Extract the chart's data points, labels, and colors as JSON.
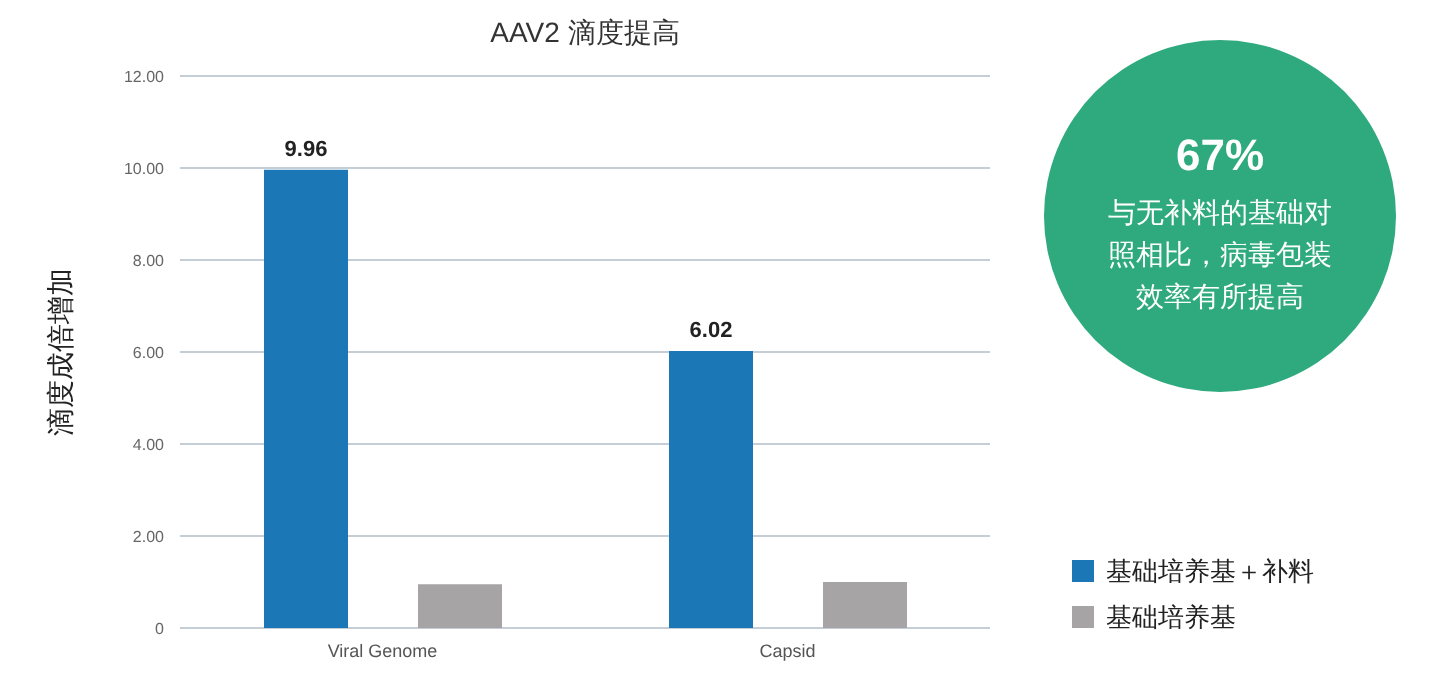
{
  "chart_data": {
    "type": "bar",
    "title": "AAV2 滴度提高",
    "ylabel": "滴度成倍增加",
    "categories": [
      "Viral Genome",
      "Capsid"
    ],
    "series": [
      {
        "name": "基础培养基＋补料",
        "color": "#1c77b6",
        "values": [
          9.96,
          6.02
        ],
        "value_labels": [
          "9.96",
          "6.02"
        ]
      },
      {
        "name": "基础培养基",
        "color": "#a6a4a5",
        "values": [
          0.95,
          1.0
        ],
        "value_labels": [
          null,
          null
        ]
      }
    ],
    "ylim": [
      0,
      12
    ],
    "yticks": [
      {
        "value": 0,
        "label": "0"
      },
      {
        "value": 2,
        "label": "2.00"
      },
      {
        "value": 4,
        "label": "4.00"
      },
      {
        "value": 6,
        "label": "6.00"
      },
      {
        "value": 8,
        "label": "8.00"
      },
      {
        "value": 10,
        "label": "10.00"
      },
      {
        "value": 12,
        "label": "12.00"
      }
    ],
    "grid": "y",
    "legend": "right",
    "annotations": [
      "67%",
      "与无补料的基础对照相比，病毒包装效率有所提高"
    ]
  }
}
